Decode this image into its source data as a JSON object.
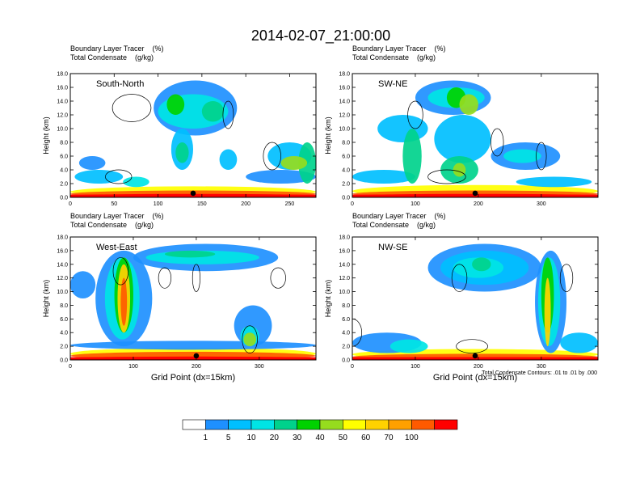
{
  "figure": {
    "title": "2014-02-07_21:00:00",
    "contour_note": "Total Condensate Contours: .01 to .01 by .000"
  },
  "chart_data": [
    {
      "type": "heatmap",
      "panel_label": "South-North",
      "header_line1": "Boundary Layer Tracer    (%)",
      "header_line2": "Total Condensate    (g/kg)",
      "ylabel": "Height (km)",
      "xlabel": "",
      "xlim": [
        0,
        280
      ],
      "ylim": [
        0,
        18
      ],
      "xticks": [
        "0",
        "50",
        "100",
        "150",
        "200",
        "250"
      ],
      "yticks": [
        "0.0",
        "2.0",
        "4.0",
        "6.0",
        "8.0",
        "10.0",
        "12.0",
        "14.0",
        "16.0",
        "18.0"
      ],
      "marker_x": 140
    },
    {
      "type": "heatmap",
      "panel_label": "SW-NE",
      "header_line1": "Boundary Layer Tracer    (%)",
      "header_line2": "Total Condensate    (g/kg)",
      "ylabel": "Height (km)",
      "xlabel": "",
      "xlim": [
        0,
        390
      ],
      "ylim": [
        0,
        18
      ],
      "xticks": [
        "0",
        "100",
        "200",
        "300"
      ],
      "yticks": [
        "0.0",
        "2.0",
        "4.0",
        "6.0",
        "8.0",
        "10.0",
        "12.0",
        "14.0",
        "16.0",
        "18.0"
      ],
      "marker_x": 195
    },
    {
      "type": "heatmap",
      "panel_label": "West-East",
      "header_line1": "Boundary Layer Tracer    (%)",
      "header_line2": "Total Condensate    (g/kg)",
      "ylabel": "Height (km)",
      "xlabel": "Grid Point (dx=15km)",
      "xlim": [
        0,
        390
      ],
      "ylim": [
        0,
        18
      ],
      "xticks": [
        "0",
        "100",
        "200",
        "300"
      ],
      "yticks": [
        "0.0",
        "2.0",
        "4.0",
        "6.0",
        "8.0",
        "10.0",
        "12.0",
        "14.0",
        "16.0",
        "18.0"
      ],
      "marker_x": 200
    },
    {
      "type": "heatmap",
      "panel_label": "NW-SE",
      "header_line1": "Boundary Layer Tracer    (%)",
      "header_line2": "Total Condensate    (g/kg)",
      "ylabel": "Height (km)",
      "xlabel": "Grid Point (dx=15km)",
      "xlim": [
        0,
        390
      ],
      "ylim": [
        0,
        18
      ],
      "xticks": [
        "0",
        "100",
        "200",
        "300"
      ],
      "yticks": [
        "0.0",
        "2.0",
        "4.0",
        "6.0",
        "8.0",
        "10.0",
        "12.0",
        "14.0",
        "16.0",
        "18.0"
      ],
      "marker_x": 195
    }
  ],
  "colorbar": {
    "labels": [
      "1",
      "5",
      "10",
      "20",
      "30",
      "40",
      "50",
      "60",
      "70",
      "100"
    ],
    "colors": [
      "#ffffff",
      "#1e90ff",
      "#00bfff",
      "#00e5e5",
      "#00d28c",
      "#00d200",
      "#96dc1e",
      "#ffff00",
      "#ffd200",
      "#ffa000",
      "#ff5a00",
      "#ff0000"
    ]
  }
}
